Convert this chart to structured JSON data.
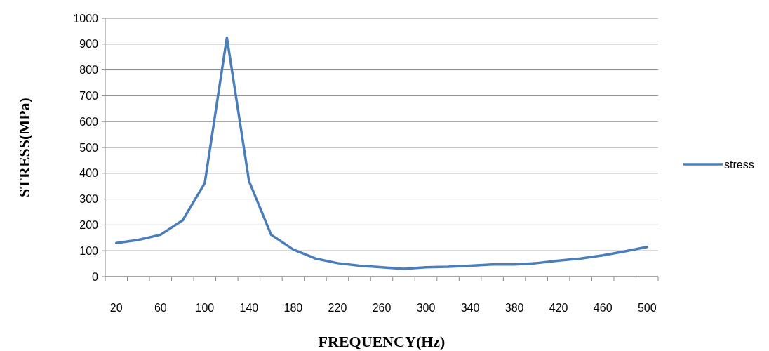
{
  "chart_data": {
    "type": "line",
    "xlabel": "FREQUENCY(Hz)",
    "ylabel": "STRESS(MPa)",
    "categories": [
      "20",
      null,
      "60",
      null,
      "100",
      null,
      "140",
      null,
      "180",
      null,
      "220",
      null,
      "260",
      null,
      "300",
      null,
      "340",
      null,
      "380",
      null,
      "420",
      null,
      "460",
      null,
      "500"
    ],
    "series": [
      {
        "name": "stress",
        "color": "#4a7ebb",
        "values": [
          130,
          142,
          162,
          218,
          362,
          925,
          370,
          162,
          105,
          70,
          52,
          42,
          36,
          30,
          36,
          38,
          42,
          47,
          47,
          52,
          62,
          70,
          82,
          98,
          115
        ]
      }
    ],
    "ylim": [
      0,
      1000
    ],
    "yticks": [
      0,
      100,
      200,
      300,
      400,
      500,
      600,
      700,
      800,
      900,
      1000
    ],
    "grid": "y",
    "legend": "right",
    "marker": "none",
    "line_style": "solid"
  }
}
